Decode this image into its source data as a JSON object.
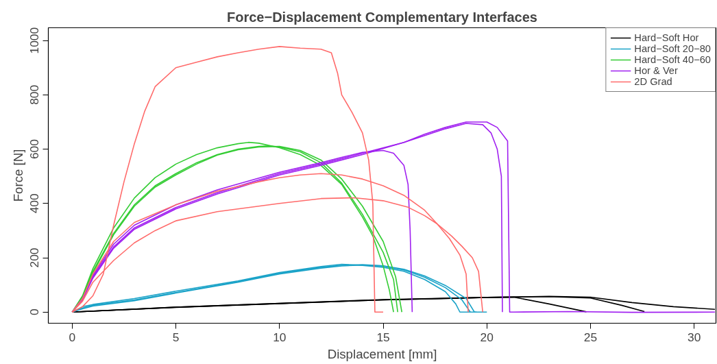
{
  "chart_data": {
    "type": "line",
    "title": "Force−Displacement Complementary Interfaces",
    "xlabel": "Displacement [mm]",
    "ylabel": "Force [N]",
    "xlim": [
      -1.15,
      31.05
    ],
    "ylim": [
      -41,
      1047
    ],
    "xticks": [
      0,
      5,
      10,
      15,
      20,
      25,
      30
    ],
    "yticks": [
      0,
      200,
      400,
      600,
      800,
      1000
    ],
    "grid": false,
    "legend": "top right",
    "line_style": "solid",
    "marker": "none",
    "series": [
      {
        "name": "Hard−Soft Hor",
        "color": "#000000",
        "x": [
          0,
          5,
          10,
          15,
          18,
          20,
          21.3,
          23,
          24.8
        ],
        "values": [
          0,
          18,
          32,
          45,
          50,
          54,
          55,
          30,
          1
        ]
      },
      {
        "color": "#000000",
        "x": [
          0,
          5,
          10,
          15,
          20,
          23,
          25,
          26.5,
          27.6
        ],
        "values": [
          0,
          18,
          32,
          46,
          54,
          57,
          52,
          25,
          2
        ]
      },
      {
        "color": "#000000",
        "x": [
          0,
          5,
          10,
          15,
          20,
          23,
          25,
          27,
          29,
          31
        ],
        "values": [
          0,
          17,
          31,
          45,
          54,
          58,
          55,
          35,
          20,
          10
        ]
      },
      {
        "name": "Hard−Soft 20−80",
        "color": "#1ba3c8",
        "x": [
          0,
          0.5,
          1,
          3,
          5,
          8,
          10,
          12,
          13,
          14,
          15,
          16,
          17,
          18,
          18.5,
          18.7,
          19.5
        ],
        "values": [
          0,
          20,
          28,
          50,
          77,
          115,
          146,
          168,
          176,
          172,
          165,
          150,
          120,
          75,
          30,
          0,
          0
        ]
      },
      {
        "color": "#1ba3c8",
        "x": [
          0,
          0.5,
          1,
          3,
          5,
          8,
          10,
          12,
          13,
          14,
          15,
          16,
          17,
          18,
          18.8,
          19.2
        ],
        "values": [
          0,
          15,
          25,
          45,
          72,
          112,
          143,
          165,
          172,
          175,
          170,
          155,
          128,
          90,
          45,
          0
        ]
      },
      {
        "color": "#1ba3c8",
        "x": [
          0,
          0.5,
          1,
          3,
          5,
          8,
          10,
          12,
          13,
          14,
          15,
          16,
          17,
          18,
          19,
          19.4,
          20
        ],
        "values": [
          0,
          12,
          22,
          42,
          70,
          110,
          140,
          162,
          170,
          173,
          170,
          158,
          133,
          98,
          50,
          0,
          0
        ]
      },
      {
        "name": "Hard−Soft 40−60",
        "color": "#33cc33",
        "x": [
          0,
          0.5,
          1,
          2,
          3,
          4,
          5,
          6,
          7,
          8,
          8.5,
          9,
          10,
          11,
          12,
          13,
          14,
          14.5,
          15,
          15.3,
          15.5
        ],
        "values": [
          0,
          60,
          160,
          310,
          420,
          495,
          545,
          580,
          605,
          620,
          625,
          622,
          605,
          580,
          540,
          470,
          350,
          280,
          170,
          80,
          0
        ]
      },
      {
        "color": "#33cc33",
        "x": [
          0,
          0.5,
          1,
          2,
          3,
          4,
          5,
          6,
          7,
          8,
          9,
          9.5,
          10,
          11,
          12,
          13,
          14,
          15,
          15.5,
          15.7
        ],
        "values": [
          0,
          55,
          150,
          290,
          395,
          465,
          510,
          550,
          580,
          600,
          610,
          612,
          608,
          590,
          550,
          475,
          360,
          220,
          120,
          0
        ]
      },
      {
        "color": "#33cc33",
        "x": [
          0,
          0.5,
          1,
          2,
          3,
          4,
          5,
          6,
          7,
          8,
          9,
          10,
          11,
          12,
          13,
          14,
          15,
          15.6,
          15.9
        ],
        "values": [
          0,
          50,
          145,
          285,
          390,
          460,
          505,
          545,
          578,
          598,
          608,
          610,
          595,
          560,
          490,
          390,
          260,
          130,
          0
        ]
      },
      {
        "name": "Hor & Ver",
        "color": "#a020f0",
        "x": [
          0,
          0.5,
          1,
          2,
          3,
          5,
          7,
          10,
          12,
          14,
          16,
          17,
          18,
          19,
          19.8,
          20.2,
          20.5,
          20.7,
          20.75
        ],
        "values": [
          0,
          50,
          130,
          240,
          310,
          385,
          440,
          510,
          545,
          585,
          625,
          650,
          675,
          695,
          690,
          660,
          600,
          500,
          0
        ]
      },
      {
        "color": "#a020f0",
        "x": [
          0,
          0.5,
          1,
          2,
          3,
          5,
          7,
          10,
          12,
          14,
          16,
          17,
          18,
          19,
          20,
          20.5,
          21.0,
          21.1,
          21.3,
          24,
          27,
          31
        ],
        "values": [
          0,
          45,
          125,
          235,
          305,
          380,
          435,
          505,
          540,
          580,
          625,
          655,
          680,
          700,
          700,
          680,
          630,
          0,
          0,
          2,
          -1,
          0
        ]
      },
      {
        "color": "#a020f0",
        "x": [
          0,
          0.5,
          1,
          2,
          3,
          5,
          7,
          10,
          12,
          13,
          14,
          15,
          15.5,
          16,
          16.2,
          16.3,
          16.4
        ],
        "values": [
          0,
          50,
          135,
          250,
          320,
          395,
          450,
          515,
          550,
          570,
          588,
          595,
          585,
          540,
          470,
          300,
          0
        ]
      },
      {
        "name": "2D Grad",
        "color": "#ff6b6b",
        "x": [
          0,
          0.5,
          1,
          1.5,
          2,
          2.5,
          3,
          3.5,
          4,
          5,
          6,
          7,
          8,
          9,
          10,
          11,
          12,
          12.5,
          12.8,
          13,
          13.5,
          14,
          14.3,
          14.5,
          14.6,
          15
        ],
        "values": [
          0,
          20,
          60,
          140,
          320,
          480,
          620,
          740,
          830,
          900,
          920,
          940,
          955,
          968,
          978,
          972,
          968,
          955,
          880,
          800,
          735,
          660,
          560,
          400,
          0,
          0
        ]
      },
      {
        "color": "#ff6b6b",
        "x": [
          0,
          0.5,
          1,
          2,
          3,
          5,
          7,
          9,
          10,
          11,
          12,
          13,
          14,
          15,
          16,
          17,
          17.6,
          18.2,
          18.7,
          19.0,
          19.1
        ],
        "values": [
          0,
          50,
          140,
          260,
          330,
          395,
          445,
          480,
          495,
          505,
          510,
          505,
          490,
          465,
          430,
          375,
          325,
          270,
          210,
          140,
          0
        ]
      },
      {
        "color": "#ff6b6b",
        "x": [
          0,
          0.5,
          1,
          2,
          3,
          4,
          5,
          7,
          10,
          12,
          13.6,
          15,
          16.2,
          17,
          17.6,
          18.3,
          18.8,
          19.3,
          19.6,
          19.8
        ],
        "values": [
          0,
          40,
          110,
          190,
          255,
          300,
          336,
          370,
          400,
          418,
          421,
          410,
          386,
          355,
          325,
          280,
          242,
          200,
          150,
          0
        ]
      }
    ]
  }
}
